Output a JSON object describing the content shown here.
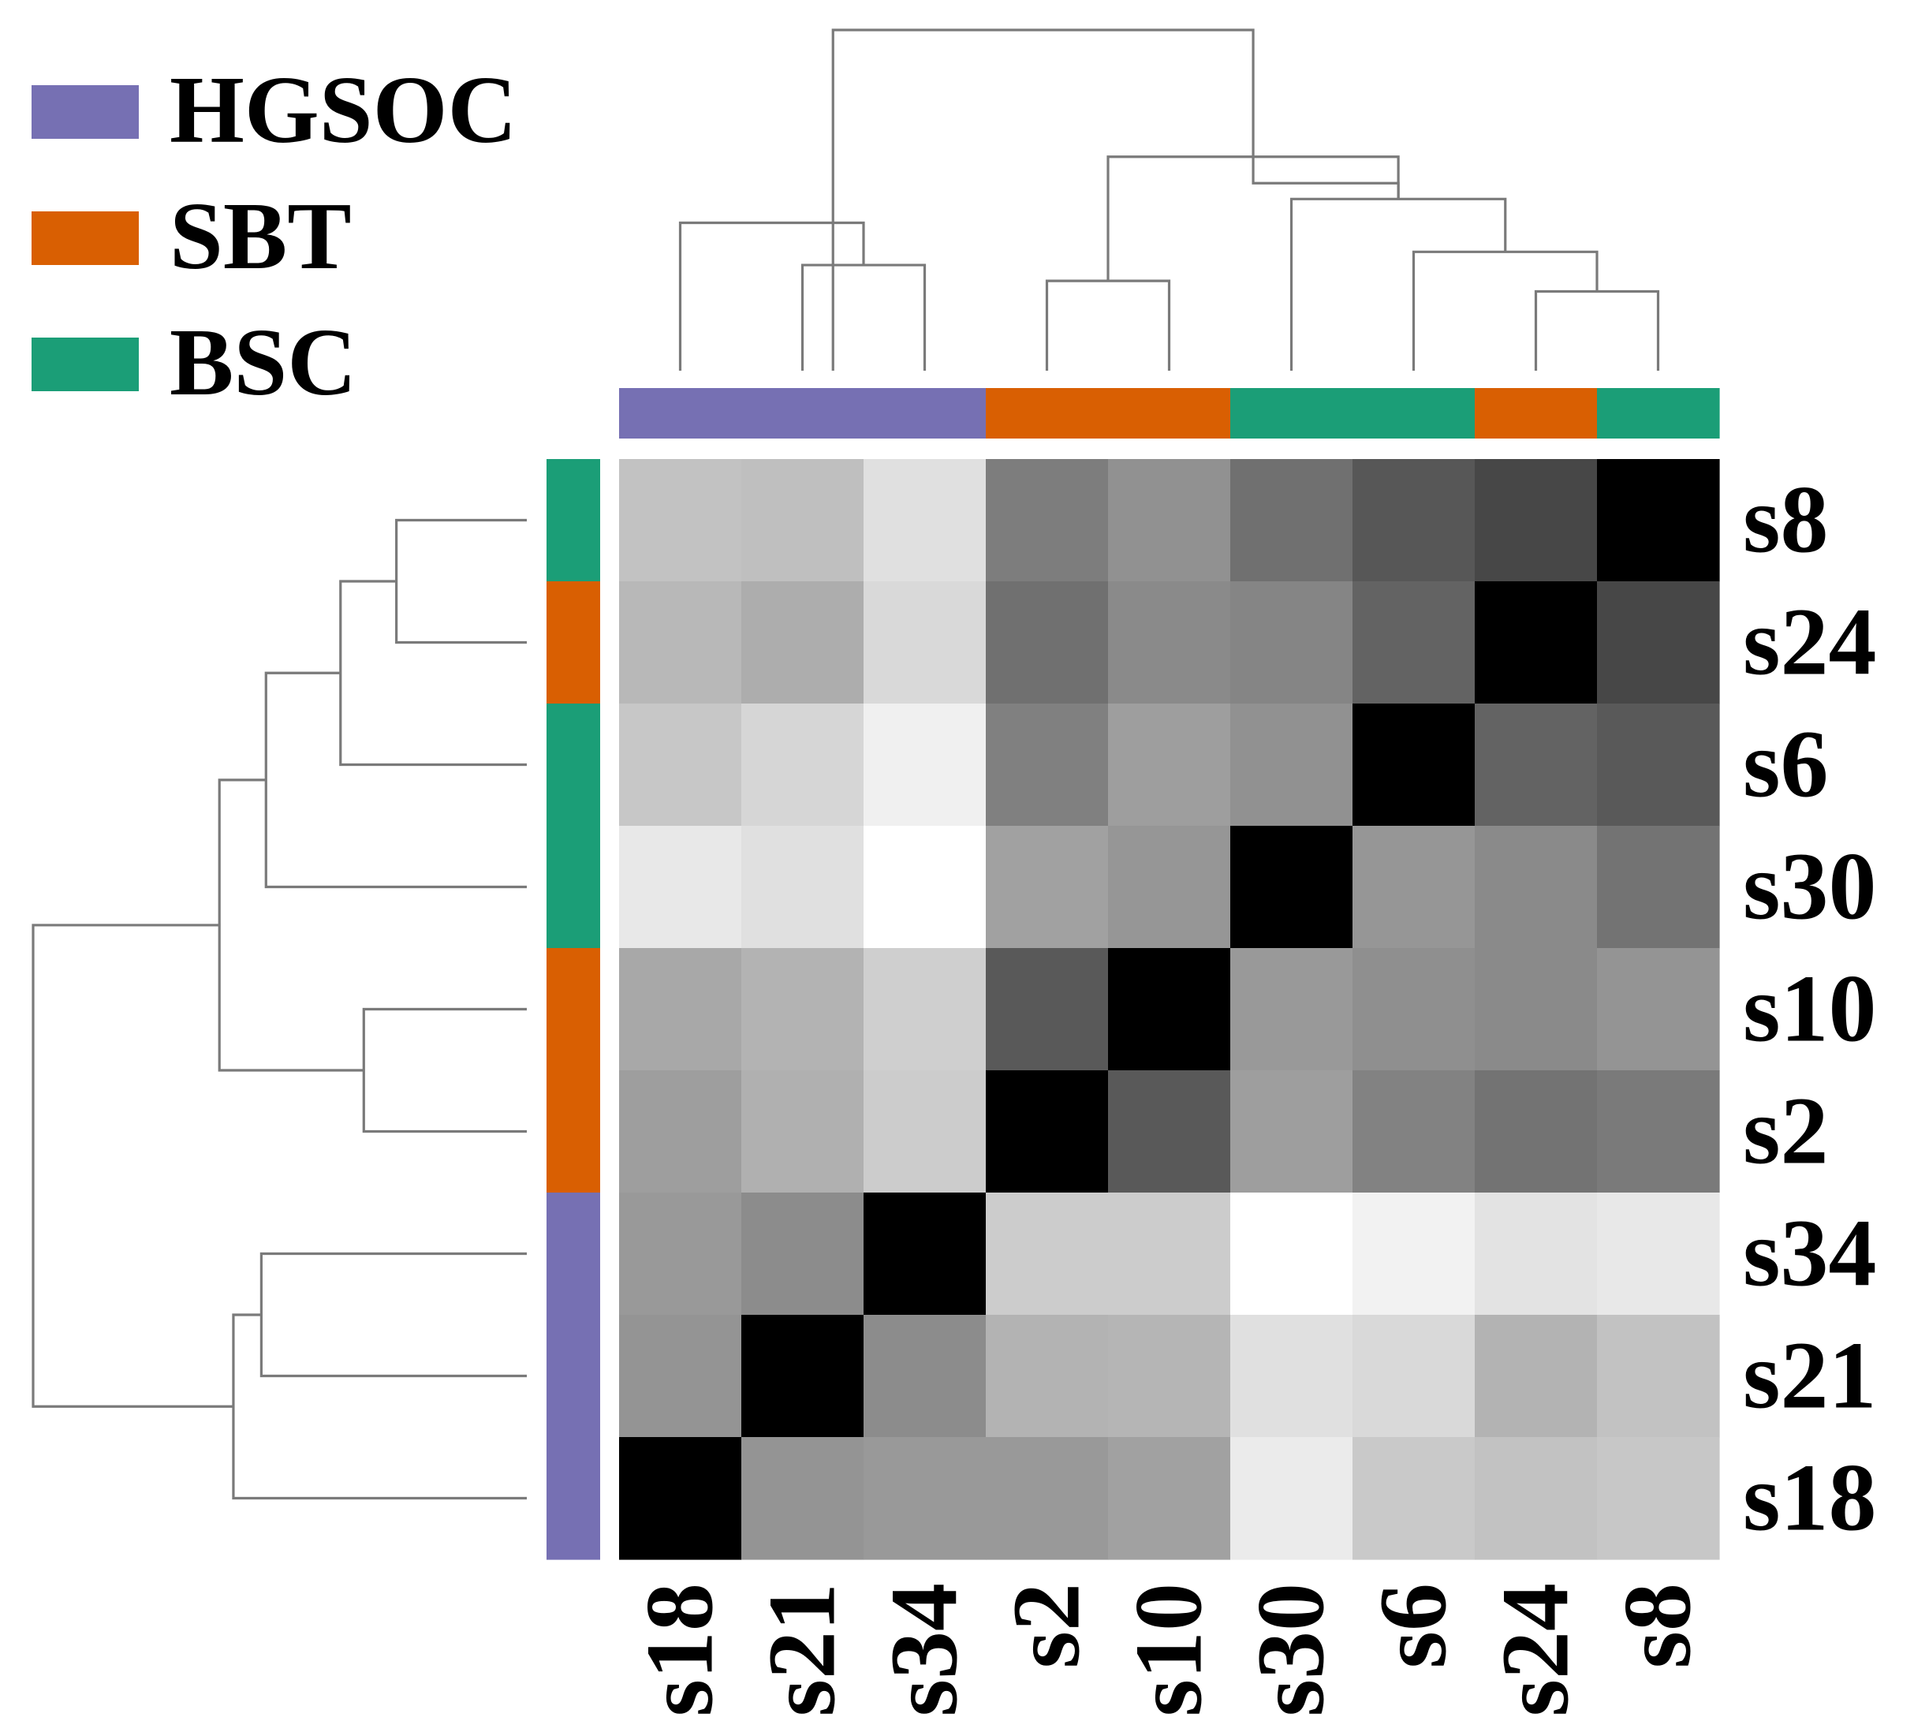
{
  "chart_data": {
    "type": "heatmap",
    "title": "",
    "columns": [
      "s18",
      "s21",
      "s34",
      "s2",
      "s10",
      "s30",
      "s6",
      "s24",
      "s8"
    ],
    "rows": [
      "s8",
      "s24",
      "s6",
      "s30",
      "s10",
      "s2",
      "s34",
      "s21",
      "s18"
    ],
    "column_groups": [
      "HGSOC",
      "HGSOC",
      "HGSOC",
      "SBT",
      "SBT",
      "BSC",
      "BSC",
      "SBT",
      "BSC"
    ],
    "row_groups": [
      "BSC",
      "SBT",
      "BSC",
      "BSC",
      "SBT",
      "SBT",
      "HGSOC",
      "HGSOC",
      "HGSOC"
    ],
    "legend": [
      {
        "label": "HGSOC",
        "color": "#7670b3"
      },
      {
        "label": "SBT",
        "color": "#d95f02"
      },
      {
        "label": "BSC",
        "color": "#1b9e77"
      }
    ],
    "color_scale": {
      "low": "#ffffff",
      "high": "#000000",
      "range": [
        0,
        1
      ]
    },
    "values": [
      [
        0.24,
        0.25,
        0.12,
        0.51,
        0.43,
        0.56,
        0.66,
        0.72,
        1.0
      ],
      [
        0.28,
        0.32,
        0.15,
        0.56,
        0.46,
        0.48,
        0.61,
        1.0,
        0.72
      ],
      [
        0.22,
        0.16,
        0.06,
        0.5,
        0.38,
        0.43,
        1.0,
        0.61,
        0.65
      ],
      [
        0.09,
        0.12,
        0.0,
        0.37,
        0.41,
        1.0,
        0.41,
        0.46,
        0.55
      ],
      [
        0.34,
        0.3,
        0.19,
        0.65,
        1.0,
        0.4,
        0.44,
        0.46,
        0.42
      ],
      [
        0.38,
        0.31,
        0.2,
        1.0,
        0.65,
        0.38,
        0.49,
        0.55,
        0.52
      ],
      [
        0.4,
        0.45,
        1.0,
        0.2,
        0.2,
        0.0,
        0.05,
        0.11,
        0.09
      ],
      [
        0.42,
        1.0,
        0.45,
        0.3,
        0.29,
        0.12,
        0.15,
        0.3,
        0.24
      ],
      [
        1.0,
        0.42,
        0.4,
        0.4,
        0.37,
        0.08,
        0.21,
        0.24,
        0.22
      ]
    ],
    "column_dendrogram": [
      {
        "a": 1,
        "b": 2,
        "height": 0.8
      },
      {
        "a": 0,
        "b": 1.5,
        "height": 1.12
      },
      {
        "a": 7,
        "b": 8,
        "height": 0.6
      },
      {
        "a": 6,
        "b": 7.5,
        "height": 0.9
      },
      {
        "a": 5,
        "b": 6.75,
        "height": 1.3
      },
      {
        "a": 3,
        "b": 4,
        "height": 0.68
      },
      {
        "a": 3.5,
        "b": 5.875,
        "height": 1.62
      },
      {
        "a": 5.875,
        "b": 4.6875,
        "height": 1.42
      },
      {
        "a": 1.25,
        "b": 4.6875,
        "height": 2.58
      }
    ],
    "row_dendrogram": [
      {
        "a": 0,
        "b": 1,
        "height": 0.56
      },
      {
        "a": 0.5,
        "b": 2,
        "height": 0.8
      },
      {
        "a": 1.25,
        "b": 3,
        "height": 1.12
      },
      {
        "a": 4,
        "b": 5,
        "height": 0.7
      },
      {
        "a": 2.125,
        "b": 4.5,
        "height": 1.32
      },
      {
        "a": 6,
        "b": 7,
        "height": 1.14
      },
      {
        "a": 6.5,
        "b": 8,
        "height": 1.26
      },
      {
        "a": 3.3125,
        "b": 7.25,
        "height": 2.12
      }
    ]
  }
}
